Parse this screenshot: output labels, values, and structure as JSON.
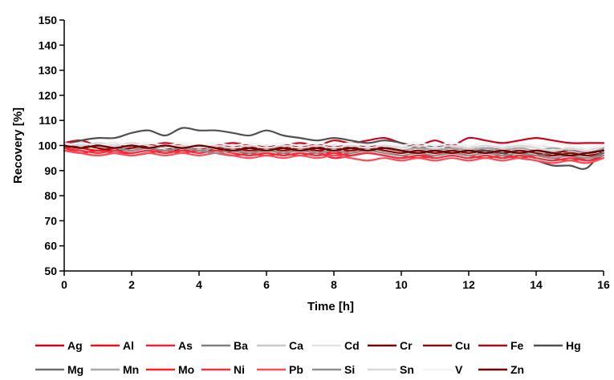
{
  "chart_data": {
    "type": "line",
    "xlabel": "Time [h]",
    "ylabel": "Recovery [%]",
    "xlim": [
      0,
      16
    ],
    "ylim": [
      50,
      150
    ],
    "x_ticks": [
      0,
      2,
      4,
      6,
      8,
      10,
      12,
      14,
      16
    ],
    "y_ticks": [
      50,
      60,
      70,
      80,
      90,
      100,
      110,
      120,
      130,
      140,
      150
    ],
    "grid": false,
    "legend_position": "bottom",
    "x": [
      0,
      0.5,
      1,
      1.5,
      2,
      2.5,
      3,
      3.5,
      4,
      4.5,
      5,
      5.5,
      6,
      6.5,
      7,
      7.5,
      8,
      8.5,
      9,
      9.5,
      10,
      10.5,
      11,
      11.5,
      12,
      12.5,
      13,
      13.5,
      14,
      14.5,
      15,
      15.5,
      16
    ],
    "series": [
      {
        "name": "Ag",
        "color": "#d0021b",
        "values": [
          101,
          102,
          100,
          101,
          99,
          100,
          101,
          100,
          99,
          100,
          101,
          100,
          99,
          100,
          101,
          100,
          102,
          101,
          102,
          103,
          101,
          100,
          102,
          100,
          103,
          102,
          101,
          102,
          103,
          102,
          101,
          101,
          101
        ]
      },
      {
        "name": "Al",
        "color": "#e8101d",
        "values": [
          100,
          99,
          98,
          99,
          98,
          99,
          98,
          99,
          98,
          99,
          98,
          97,
          99,
          98,
          99,
          98,
          97,
          98,
          99,
          98,
          97,
          98,
          97,
          98,
          99,
          98,
          97,
          98,
          97,
          96,
          97,
          96,
          97
        ]
      },
      {
        "name": "As",
        "color": "#ee2233",
        "values": [
          99,
          97,
          96,
          97,
          97,
          98,
          97,
          98,
          98,
          97,
          96,
          97,
          98,
          97,
          96,
          97,
          95,
          96,
          97,
          96,
          95,
          96,
          96,
          97,
          96,
          97,
          96,
          95,
          96,
          95,
          96,
          94,
          96
        ]
      },
      {
        "name": "Ba",
        "color": "#808080",
        "values": [
          100,
          99,
          100,
          99,
          100,
          99,
          98,
          99,
          98,
          99,
          98,
          99,
          98,
          99,
          98,
          99,
          98,
          99,
          98,
          99,
          98,
          97,
          98,
          97,
          98,
          97,
          98,
          97,
          96,
          97,
          96,
          95,
          97
        ]
      },
      {
        "name": "Ca",
        "color": "#c8c8c8",
        "values": [
          101,
          100,
          101,
          100,
          99,
          100,
          99,
          100,
          99,
          100,
          99,
          98,
          99,
          98,
          99,
          98,
          99,
          98,
          99,
          98,
          97,
          98,
          99,
          98,
          99,
          98,
          99,
          98,
          97,
          98,
          97,
          96,
          99
        ]
      },
      {
        "name": "Cd",
        "color": "#e4e4e4",
        "values": [
          100,
          101,
          100,
          101,
          100,
          101,
          100,
          99,
          100,
          99,
          100,
          99,
          100,
          99,
          100,
          99,
          100,
          99,
          100,
          99,
          100,
          99,
          100,
          99,
          100,
          99,
          100,
          99,
          100,
          99,
          98,
          99,
          100
        ]
      },
      {
        "name": "Cr",
        "color": "#7a0000",
        "values": [
          100,
          99,
          100,
          99,
          100,
          99,
          98,
          99,
          98,
          99,
          98,
          99,
          100,
          99,
          98,
          99,
          100,
          99,
          98,
          99,
          98,
          97,
          98,
          97,
          98,
          97,
          98,
          97,
          98,
          97,
          98,
          97,
          98
        ]
      },
      {
        "name": "Cu",
        "color": "#8b0a0a",
        "values": [
          99,
          100,
          99,
          98,
          99,
          100,
          99,
          98,
          99,
          98,
          99,
          98,
          99,
          98,
          99,
          98,
          99,
          98,
          99,
          98,
          97,
          98,
          97,
          98,
          97,
          98,
          97,
          98,
          97,
          96,
          97,
          96,
          97
        ]
      },
      {
        "name": "Fe",
        "color": "#a00f14",
        "values": [
          100,
          101,
          100,
          99,
          100,
          99,
          100,
          99,
          100,
          99,
          100,
          99,
          100,
          99,
          100,
          99,
          100,
          99,
          100,
          99,
          98,
          99,
          98,
          99,
          98,
          99,
          98,
          97,
          98,
          97,
          98,
          97,
          98
        ]
      },
      {
        "name": "Hg",
        "color": "#505050",
        "values": [
          100,
          102,
          103,
          103,
          105,
          106,
          104,
          107,
          106,
          106,
          105,
          104,
          106,
          104,
          103,
          102,
          103,
          102,
          101,
          102,
          101,
          99,
          100,
          99,
          98,
          98,
          97,
          95,
          94,
          92,
          92,
          91,
          99
        ]
      },
      {
        "name": "Mg",
        "color": "#707070",
        "values": [
          100,
          101,
          100,
          99,
          98,
          99,
          98,
          99,
          98,
          99,
          98,
          97,
          98,
          99,
          98,
          99,
          98,
          99,
          98,
          99,
          98,
          97,
          98,
          97,
          98,
          97,
          98,
          97,
          96,
          97,
          96,
          95,
          97
        ]
      },
      {
        "name": "Mn",
        "color": "#a8a8a8",
        "values": [
          100,
          99,
          100,
          99,
          100,
          99,
          100,
          99,
          98,
          99,
          98,
          99,
          98,
          99,
          98,
          99,
          98,
          99,
          98,
          99,
          98,
          99,
          98,
          99,
          98,
          99,
          98,
          99,
          98,
          99,
          98,
          97,
          99
        ]
      },
      {
        "name": "Mo",
        "color": "#ff2020",
        "values": [
          98,
          97,
          98,
          97,
          96,
          97,
          98,
          97,
          98,
          97,
          98,
          97,
          96,
          97,
          98,
          97,
          96,
          97,
          98,
          97,
          96,
          95,
          96,
          97,
          96,
          95,
          96,
          95,
          96,
          95,
          94,
          95,
          96
        ]
      },
      {
        "name": "Ni",
        "color": "#f03040",
        "values": [
          99,
          98,
          97,
          98,
          97,
          98,
          97,
          98,
          97,
          98,
          97,
          96,
          97,
          96,
          97,
          96,
          97,
          96,
          97,
          96,
          95,
          96,
          95,
          96,
          95,
          96,
          95,
          96,
          95,
          94,
          95,
          94,
          95
        ]
      },
      {
        "name": "Pb",
        "color": "#ff4c5a",
        "values": [
          98,
          97,
          96,
          97,
          96,
          97,
          96,
          97,
          96,
          97,
          96,
          95,
          96,
          95,
          96,
          95,
          96,
          95,
          94,
          95,
          94,
          95,
          94,
          95,
          94,
          95,
          94,
          95,
          94,
          93,
          94,
          93,
          95
        ]
      },
      {
        "name": "Si",
        "color": "#909090",
        "values": [
          100,
          99,
          100,
          99,
          98,
          99,
          98,
          99,
          98,
          97,
          98,
          97,
          98,
          97,
          98,
          97,
          98,
          97,
          98,
          97,
          96,
          97,
          96,
          97,
          96,
          97,
          96,
          97,
          96,
          95,
          96,
          95,
          96
        ]
      },
      {
        "name": "Sn",
        "color": "#d8d8d8",
        "values": [
          101,
          100,
          101,
          100,
          101,
          100,
          99,
          100,
          99,
          100,
          99,
          100,
          99,
          100,
          99,
          100,
          99,
          100,
          99,
          100,
          99,
          100,
          99,
          100,
          99,
          100,
          99,
          100,
          99,
          98,
          99,
          98,
          100
        ]
      },
      {
        "name": "V",
        "color": "#f2f2f2",
        "values": [
          100,
          101,
          100,
          101,
          100,
          101,
          100,
          101,
          100,
          101,
          100,
          101,
          100,
          101,
          100,
          101,
          100,
          101,
          100,
          101,
          100,
          101,
          100,
          101,
          100,
          101,
          100,
          101,
          100,
          101,
          100,
          99,
          100
        ]
      },
      {
        "name": "Zn",
        "color": "#6e0000",
        "values": [
          100,
          99,
          100,
          99,
          100,
          99,
          100,
          99,
          100,
          99,
          98,
          99,
          98,
          99,
          98,
          99,
          98,
          99,
          98,
          99,
          98,
          97,
          98,
          97,
          98,
          97,
          98,
          97,
          98,
          97,
          96,
          97,
          98
        ]
      }
    ]
  }
}
